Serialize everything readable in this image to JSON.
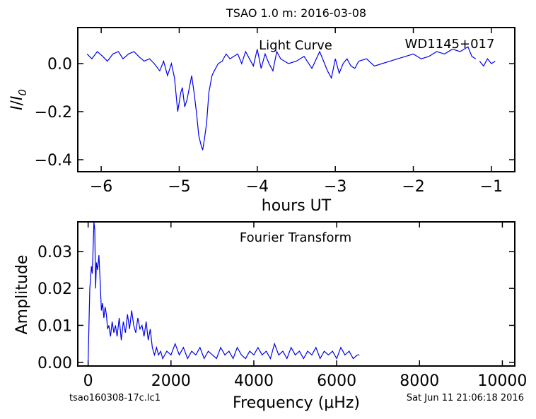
{
  "figure": {
    "title": "TSAO 1.0 m:  2016-03-08",
    "footer_left": "tsao160308-17c.lc1",
    "footer_right": "Sat Jun 11 21:06:18 2016"
  },
  "chart_data": [
    {
      "type": "line",
      "title": "Light Curve",
      "annotation": "WD1145+017",
      "xlabel": "hours UT",
      "ylabel_base": "I",
      "ylabel_sub": "0",
      "xlim": [
        -6.3,
        -0.7
      ],
      "ylim": [
        -0.45,
        0.15
      ],
      "xticks": [
        -6,
        -5,
        -4,
        -3,
        -2,
        -1
      ],
      "xtick_labels": [
        "−6",
        "−5",
        "−4",
        "−3",
        "−2",
        "−1"
      ],
      "yticks": [
        0.0,
        -0.2,
        -0.4
      ],
      "ytick_labels": [
        "0.0",
        "−0.2",
        "−0.4"
      ],
      "color": "#0000ee",
      "series": [
        {
          "x": [
            -6.18,
            -6.12,
            -6.05,
            -5.98,
            -5.92,
            -5.85,
            -5.78,
            -5.72,
            -5.65,
            -5.58,
            -5.52,
            -5.45,
            -5.38,
            -5.32,
            -5.25,
            -5.2,
            -5.15,
            -5.1,
            -5.06,
            -5.02,
            -4.98,
            -4.96,
            -4.93,
            -4.9,
            -4.87,
            -4.84,
            -4.81,
            -4.78,
            -4.75,
            -4.72,
            -4.7,
            -4.68,
            -4.65,
            -4.62,
            -4.58,
            -4.55,
            -4.5,
            -4.45,
            -4.4,
            -4.35,
            -4.3,
            -4.25,
            -4.2,
            -4.15,
            -4.1,
            -4.05,
            -4.0,
            -3.95,
            -3.9,
            -3.85,
            -3.8,
            -3.75,
            -3.7,
            -3.6,
            -3.5,
            -3.4,
            -3.3,
            -3.2,
            -3.1,
            -3.05,
            -3.0,
            -2.95,
            -2.9,
            -2.85,
            -2.8,
            -2.75,
            -2.7,
            -2.6,
            -2.5,
            -2.4,
            -2.3,
            -2.2,
            -2.1,
            -2.0,
            -1.9,
            -1.8,
            -1.7,
            -1.6,
            -1.5,
            -1.4,
            -1.3,
            -1.25,
            -1.2
          ],
          "y": [
            0.04,
            0.02,
            0.05,
            0.03,
            0.01,
            0.04,
            0.05,
            0.02,
            0.04,
            0.05,
            0.03,
            0.01,
            0.02,
            0.0,
            -0.03,
            0.01,
            -0.05,
            0.0,
            -0.06,
            -0.2,
            -0.12,
            -0.1,
            -0.18,
            -0.15,
            -0.1,
            -0.05,
            -0.12,
            -0.2,
            -0.3,
            -0.34,
            -0.36,
            -0.32,
            -0.25,
            -0.12,
            -0.05,
            -0.03,
            0.0,
            0.01,
            0.04,
            0.02,
            0.03,
            0.04,
            0.0,
            0.05,
            0.02,
            -0.01,
            0.06,
            -0.02,
            0.04,
            0.0,
            -0.03,
            0.05,
            0.02,
            0.0,
            0.01,
            0.03,
            -0.02,
            0.05,
            -0.03,
            -0.06,
            0.02,
            -0.04,
            0.0,
            0.02,
            -0.01,
            -0.02,
            0.01,
            0.02,
            -0.01,
            0.0,
            0.01,
            0.02,
            0.03,
            0.04,
            0.02,
            0.03,
            0.05,
            0.04,
            0.06,
            0.05,
            0.07,
            0.03,
            0.02
          ]
        },
        {
          "x": [
            -1.15,
            -1.1,
            -1.05,
            -1.0,
            -0.95
          ],
          "y": [
            0.01,
            -0.01,
            0.02,
            0.0,
            0.01
          ]
        }
      ]
    },
    {
      "type": "line",
      "title": "Fourier Transform",
      "xlabel": "Frequency (μHz)",
      "ylabel": "Amplitude",
      "xlim": [
        -250,
        10300
      ],
      "ylim": [
        -0.001,
        0.038
      ],
      "xticks": [
        0,
        2000,
        4000,
        6000,
        8000,
        10000
      ],
      "xtick_labels": [
        "0",
        "2000",
        "4000",
        "6000",
        "8000",
        "10000"
      ],
      "yticks": [
        0.0,
        0.01,
        0.02,
        0.03
      ],
      "ytick_labels": [
        "0.00",
        "0.01",
        "0.02",
        "0.03"
      ],
      "color": "#0000ee",
      "series": [
        {
          "x": [
            0,
            40,
            80,
            100,
            120,
            140,
            160,
            180,
            200,
            230,
            260,
            290,
            320,
            350,
            380,
            410,
            440,
            470,
            500,
            540,
            580,
            620,
            660,
            700,
            750,
            800,
            850,
            900,
            950,
            1000,
            1050,
            1100,
            1150,
            1200,
            1250,
            1300,
            1350,
            1400,
            1450,
            1500,
            1550,
            1600,
            1650,
            1700,
            1750,
            1800,
            1900,
            2000,
            2100,
            2200,
            2300,
            2400,
            2500,
            2600,
            2700,
            2800,
            2900,
            3000,
            3100,
            3200,
            3300,
            3400,
            3500,
            3600,
            3700,
            3800,
            3900,
            4000,
            4100,
            4200,
            4300,
            4400,
            4500,
            4600,
            4700,
            4800,
            4900,
            5000,
            5100,
            5200,
            5300,
            5400,
            5500,
            5600,
            5700,
            5800,
            5900,
            6000,
            6100,
            6200,
            6300,
            6400,
            6500,
            6550
          ],
          "y": [
            0.0,
            0.02,
            0.026,
            0.024,
            0.031,
            0.038,
            0.036,
            0.02,
            0.027,
            0.025,
            0.029,
            0.022,
            0.014,
            0.016,
            0.012,
            0.015,
            0.013,
            0.009,
            0.01,
            0.007,
            0.011,
            0.008,
            0.01,
            0.007,
            0.012,
            0.006,
            0.011,
            0.008,
            0.013,
            0.009,
            0.014,
            0.01,
            0.008,
            0.012,
            0.009,
            0.01,
            0.007,
            0.011,
            0.006,
            0.009,
            0.004,
            0.002,
            0.004,
            0.002,
            0.003,
            0.001,
            0.003,
            0.002,
            0.005,
            0.002,
            0.004,
            0.001,
            0.003,
            0.002,
            0.004,
            0.001,
            0.003,
            0.002,
            0.001,
            0.004,
            0.002,
            0.003,
            0.001,
            0.004,
            0.002,
            0.001,
            0.003,
            0.002,
            0.004,
            0.002,
            0.003,
            0.001,
            0.005,
            0.002,
            0.003,
            0.001,
            0.004,
            0.002,
            0.003,
            0.001,
            0.003,
            0.002,
            0.004,
            0.001,
            0.003,
            0.002,
            0.003,
            0.001,
            0.004,
            0.002,
            0.003,
            0.001,
            0.002,
            0.002
          ]
        }
      ]
    }
  ]
}
